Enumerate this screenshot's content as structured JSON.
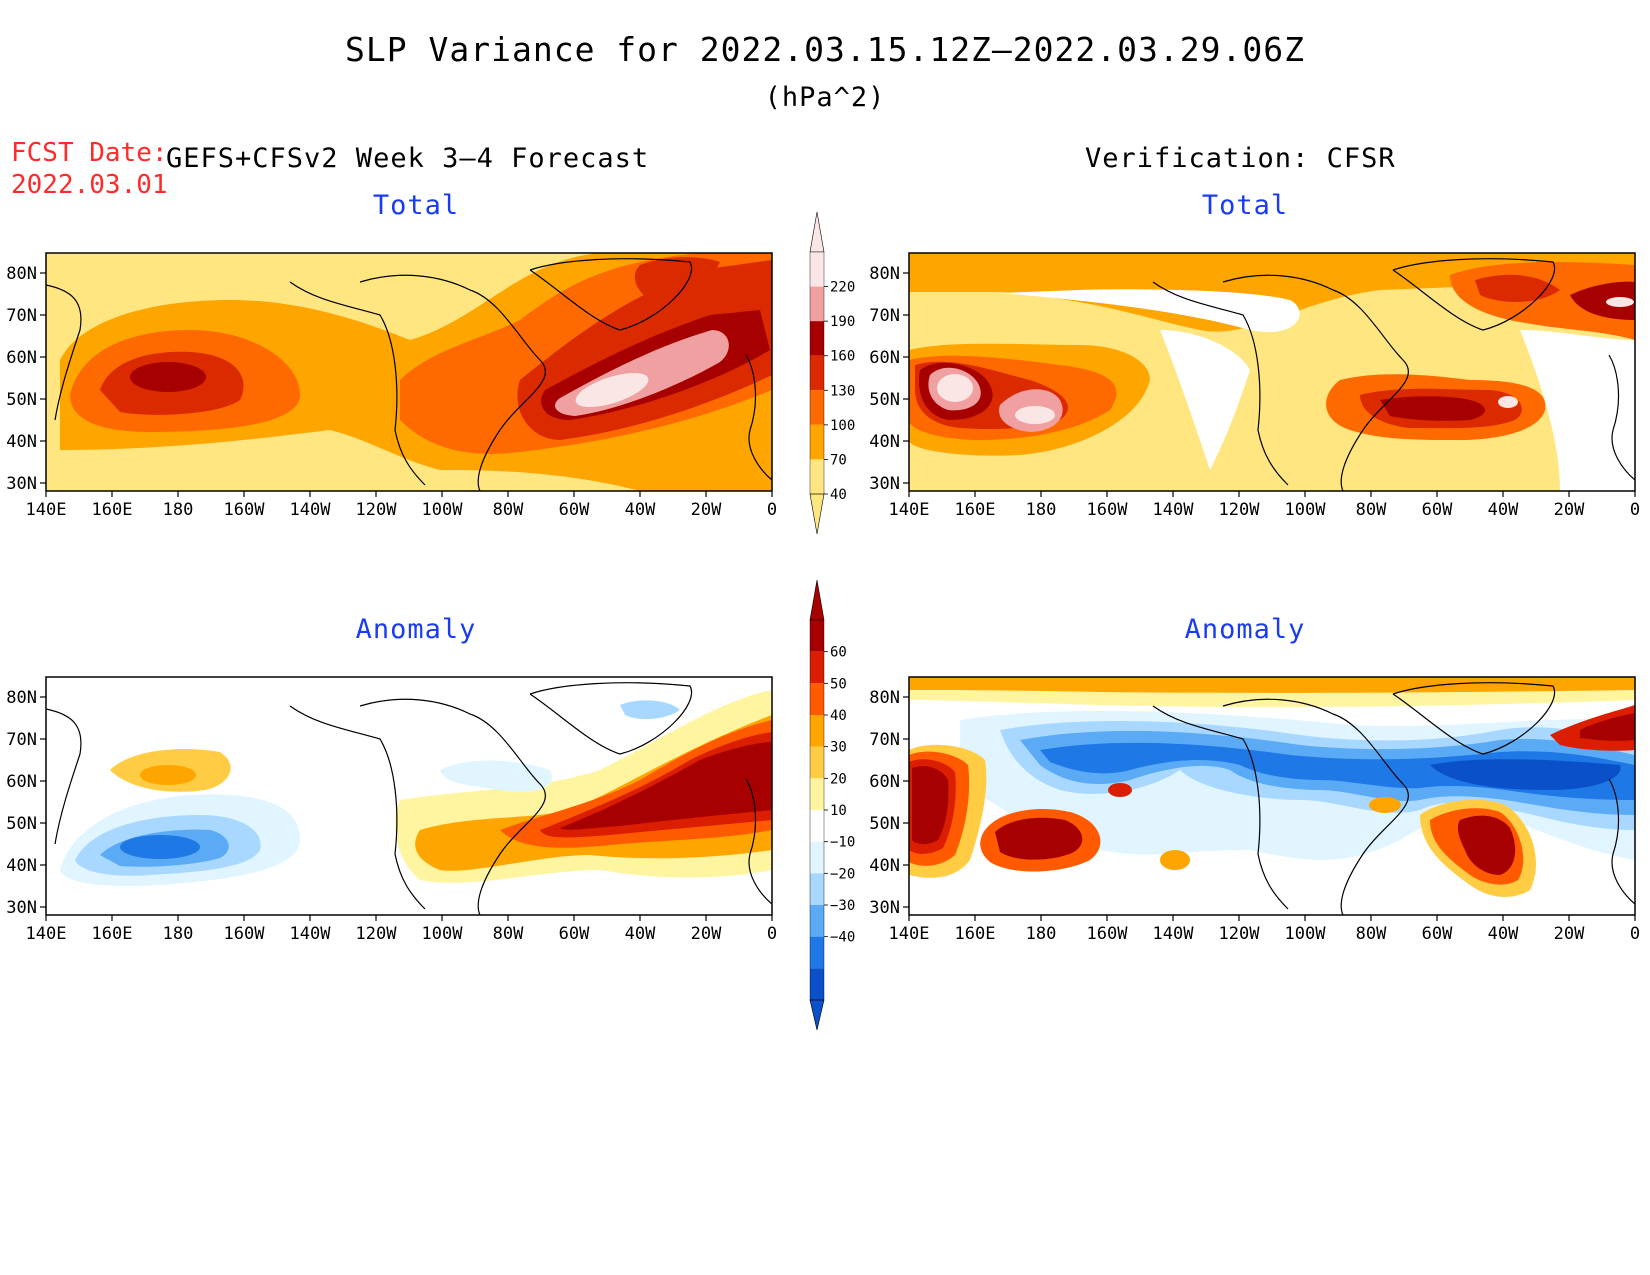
{
  "header": {
    "title": "SLP Variance for 2022.03.15.12Z–2022.03.29.06Z",
    "units": "(hPa^2)",
    "fcst_label": "FCST Date:",
    "fcst_date": "2022.03.01",
    "model_label": "GEFS+CFSv2 Week 3–4 Forecast",
    "verification_label": "Verification: CFSR"
  },
  "panels": {
    "forecast_total": {
      "title": "Total"
    },
    "verification_total": {
      "title": "Total"
    },
    "forecast_anomaly": {
      "title": "Anomaly"
    },
    "verification_anomaly": {
      "title": "Anomaly"
    }
  },
  "axes": {
    "lon_labels": [
      "140E",
      "160E",
      "180",
      "160W",
      "140W",
      "120W",
      "100W",
      "80W",
      "60W",
      "40W",
      "20W",
      "0"
    ],
    "lat_labels": [
      "80N",
      "70N",
      "60N",
      "50N",
      "40N",
      "30N"
    ]
  },
  "colorbars": {
    "total": {
      "labels": [
        "220",
        "190",
        "160",
        "130",
        "100",
        "70",
        "40"
      ],
      "colors": [
        "#fbe6e6",
        "#f0a0a0",
        "#a60000",
        "#dc2a00",
        "#ff6a00",
        "#ffa500",
        "#ffe680"
      ]
    },
    "anomaly": {
      "labels": [
        "60",
        "50",
        "40",
        "30",
        "20",
        "10",
        "−10",
        "−20",
        "−30",
        "−40"
      ],
      "colors": [
        "#a60000",
        "#dc1e00",
        "#ff5a00",
        "#ffa500",
        "#ffcc44",
        "#fff5a0",
        "#ffffff",
        "#e0f5ff",
        "#a8d8ff",
        "#5aaaf5",
        "#1e78e6",
        "#0a50c8"
      ]
    }
  }
}
